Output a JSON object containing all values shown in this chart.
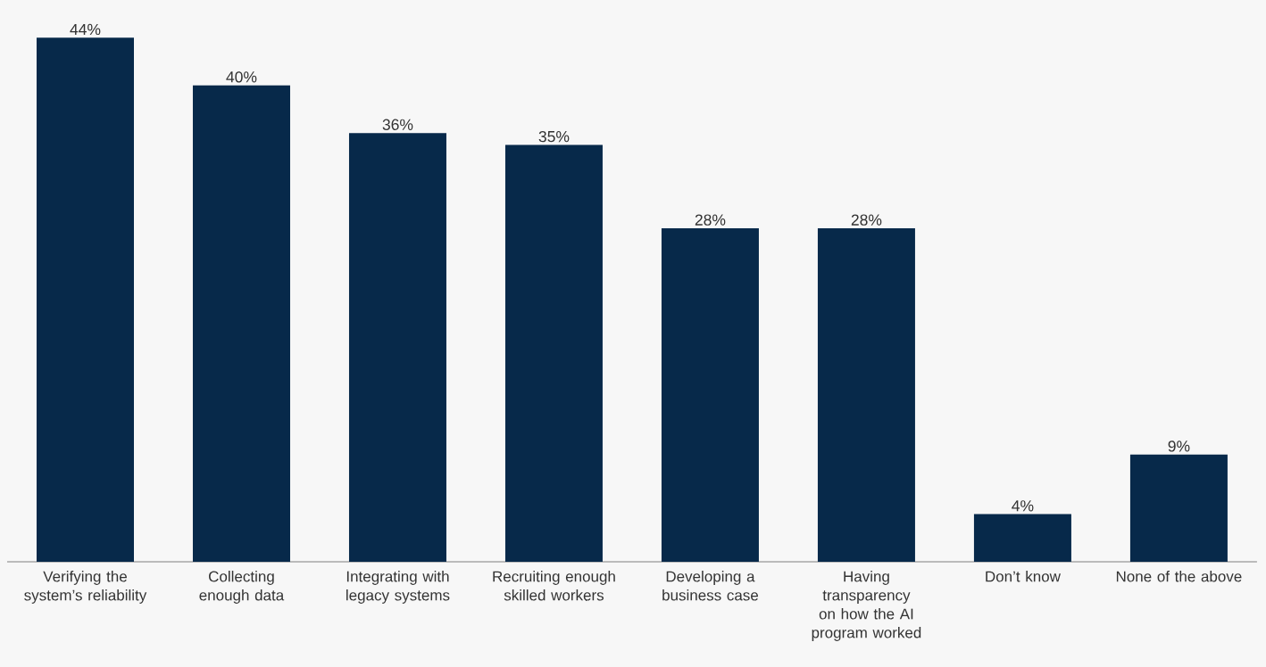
{
  "chart_data": {
    "type": "bar",
    "categories": [
      "Verifying the system’s reliability",
      "Collecting enough data",
      "Integrating with legacy systems",
      "Recruiting enough skilled workers",
      "Developing a business case",
      "Having transparency on how the AI program worked",
      "Don’t know",
      "None of the above"
    ],
    "values": [
      44,
      40,
      36,
      35,
      28,
      28,
      4,
      9
    ],
    "value_labels": [
      "44%",
      "40%",
      "36%",
      "35%",
      "28%",
      "28%",
      "4%",
      "9%"
    ],
    "color": "#07294a"
  }
}
